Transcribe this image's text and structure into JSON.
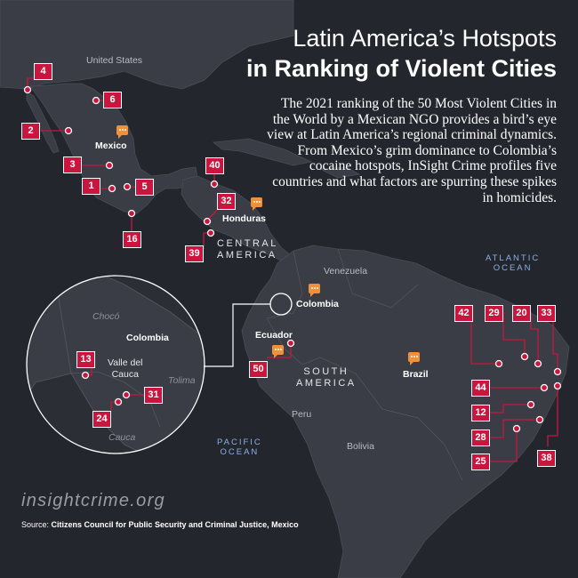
{
  "title": {
    "line1": "Latin America’s Hotspots",
    "line2": "in Ranking of Violent Cities"
  },
  "description": "The 2021 ranking of the 50 Most Violent Cities in the World by a Mexican NGO provides a bird’s eye view at Latin America’s regional criminal dynamics. From Mexico’s grim dominance to Colombia’s cocaine hotspots, InSight Crime profiles five countries and what factors are spurring these spikes in homicides.",
  "map_labels": {
    "united_states": "United States",
    "mexico": "Mexico",
    "honduras": "Honduras",
    "central_america": [
      "CENTRAL",
      "AMERICA"
    ],
    "venezuela": "Venezuela",
    "colombia": "Colombia",
    "ecuador": "Ecuador",
    "south_america": [
      "SOUTH",
      "AMERICA"
    ],
    "brazil": "Brazil",
    "peru": "Peru",
    "bolivia": "Bolivia",
    "atlantic_ocean": [
      "ATLANTIC",
      "OCEAN"
    ],
    "pacific_ocean": [
      "PACIFIC",
      "OCEAN"
    ]
  },
  "inset_labels": {
    "choco": "Chocó",
    "colombia": "Colombia",
    "valle_del_cauca": [
      "Valle del",
      "Cauca"
    ],
    "tolima": "Tolima",
    "cauca": "Cauca"
  },
  "rankings": {
    "mexico": [
      "4",
      "6",
      "2",
      "3",
      "5",
      "1",
      "16",
      "40"
    ],
    "honduras": [
      "32",
      "39"
    ],
    "colombia_inset": [
      "13",
      "31",
      "24"
    ],
    "ecuador": [
      "50"
    ],
    "brazil": [
      "42",
      "29",
      "20",
      "33",
      "44",
      "12",
      "28",
      "25",
      "38"
    ]
  },
  "chat_markers": [
    "mexico",
    "honduras",
    "colombia",
    "ecuador",
    "brazil"
  ],
  "footer": {
    "site": "insightcrime.org",
    "source_prefix": "Source: ",
    "source_text": "Citizens Council for Public Security and Criminal Justice, Mexico"
  },
  "colors": {
    "background": "#24262e",
    "land": "#3b3d46",
    "badge": "#c8163e",
    "chat_icon": "#f0913a",
    "ocean_label": "#8ab0e6"
  }
}
